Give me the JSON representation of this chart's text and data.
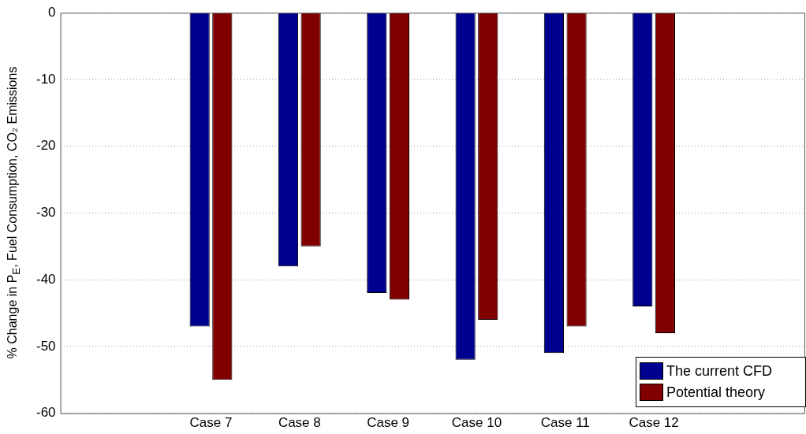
{
  "chart_data": {
    "type": "bar",
    "ylabel": "% Change in P$_{E}$, Fuel Consumption, CO₂ Emissions",
    "categories": [
      "Case 7",
      "Case 8",
      "Case 9",
      "Case 10",
      "Case 11",
      "Case 12"
    ],
    "series": [
      {
        "name": "The current CFD",
        "color": "#00008f",
        "values": [
          -47,
          -38,
          -42,
          -52,
          -51,
          -44
        ]
      },
      {
        "name": "Potential theory",
        "color": "#800000",
        "values": [
          -55,
          -35,
          -43,
          -46,
          -47,
          -48
        ]
      }
    ],
    "ylim": [
      -60,
      0
    ],
    "yticks": [
      -60,
      -50,
      -40,
      -30,
      -20,
      -10,
      0
    ],
    "grid": "y",
    "legend": "bottom right"
  }
}
